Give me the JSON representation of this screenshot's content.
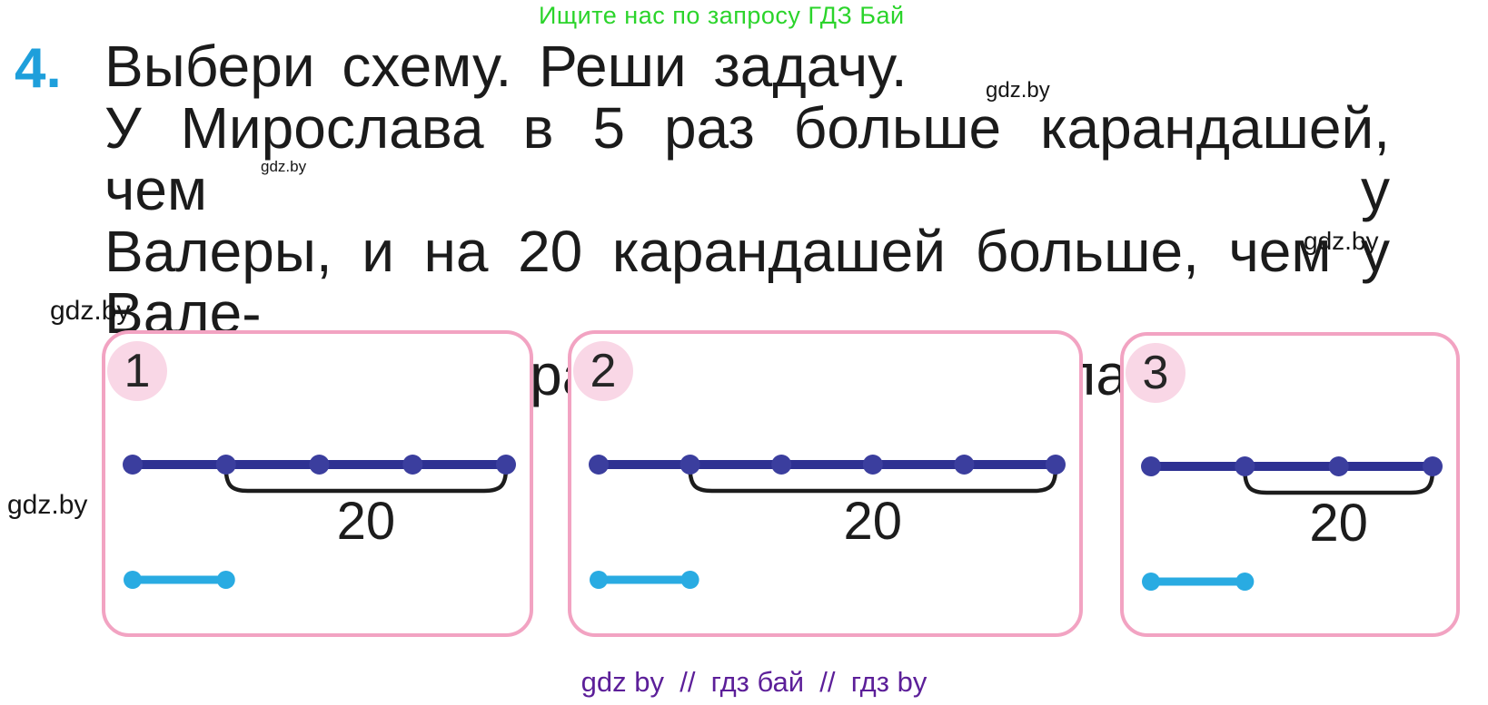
{
  "promo": {
    "text": "Ищите нас по запросу ГДЗ Бай"
  },
  "problem": {
    "number": "4.",
    "lines": [
      "Выбери схему. Реши задачу.",
      "У Мирослава в 5 раз больше карандашей, чем у",
      "Валеры, и на 20 карандашей больше, чем у Вале-",
      "ры. Сколько карандашей у Мирослава?"
    ]
  },
  "watermark": "gdz.by",
  "schemes": [
    {
      "label": "1",
      "dot_count": 5,
      "bracket_from_dot": 2,
      "bracket_label": "20",
      "bottom_line_dots": 2
    },
    {
      "label": "2",
      "dot_count": 6,
      "bracket_from_dot": 2,
      "bracket_label": "20",
      "bottom_line_dots": 2
    },
    {
      "label": "3",
      "dot_count": 4,
      "bracket_from_dot": 2,
      "bracket_label": "20",
      "bottom_line_dots": 2
    }
  ],
  "footer": {
    "text": "gdz by  //  гдз бай  //  гдз by"
  },
  "colors": {
    "promo_green": "#2bd42b",
    "number_blue": "#1e9fdb",
    "box_border_pink": "#f2a3c2",
    "badge_pink": "#f9d7e6",
    "dark_line": "#2e3192",
    "dark_dot": "#3b3e9e",
    "light_line": "#29abe2",
    "bracket": "#1c1c1c",
    "footer_purple": "#5c1f99"
  }
}
